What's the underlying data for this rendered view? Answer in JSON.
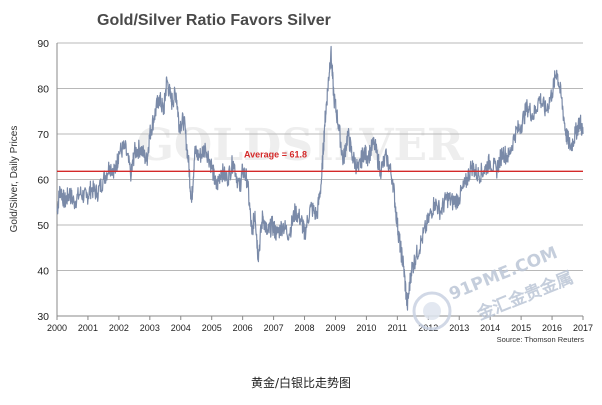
{
  "chart_data": {
    "type": "line",
    "title": "Gold/Silver Ratio Favors Silver",
    "ylabel": "Gold/Silver, Daily Prices",
    "xlabel": "",
    "ylim": [
      30,
      90
    ],
    "yticks": [
      30,
      40,
      50,
      60,
      70,
      80,
      90
    ],
    "xlim": [
      2000,
      2017
    ],
    "xticks": [
      "2000",
      "2001",
      "2002",
      "2003",
      "2004",
      "2005",
      "2006",
      "2007",
      "2008",
      "2009",
      "2010",
      "2011",
      "2012",
      "2013",
      "2014",
      "2015",
      "2016",
      "2017"
    ],
    "grid": "horizontal",
    "series": [
      {
        "name": "",
        "color": "#7a8aa8",
        "points": [
          [
            2000.0,
            53
          ],
          [
            2000.1,
            58
          ],
          [
            2000.25,
            55
          ],
          [
            2000.4,
            57
          ],
          [
            2000.55,
            55
          ],
          [
            2000.75,
            57
          ],
          [
            2000.95,
            56
          ],
          [
            2001.1,
            58
          ],
          [
            2001.3,
            57
          ],
          [
            2001.5,
            60
          ],
          [
            2001.7,
            63
          ],
          [
            2001.9,
            62
          ],
          [
            2002.0,
            66
          ],
          [
            2002.2,
            67
          ],
          [
            2002.4,
            61
          ],
          [
            2002.5,
            66
          ],
          [
            2002.7,
            67
          ],
          [
            2002.9,
            64
          ],
          [
            2003.0,
            70
          ],
          [
            2003.15,
            74
          ],
          [
            2003.3,
            78
          ],
          [
            2003.45,
            75
          ],
          [
            2003.55,
            82
          ],
          [
            2003.7,
            77
          ],
          [
            2003.85,
            79
          ],
          [
            2003.95,
            72
          ],
          [
            2004.1,
            73
          ],
          [
            2004.25,
            64
          ],
          [
            2004.35,
            55
          ],
          [
            2004.45,
            66
          ],
          [
            2004.6,
            65
          ],
          [
            2004.8,
            67
          ],
          [
            2005.0,
            63
          ],
          [
            2005.15,
            58
          ],
          [
            2005.3,
            62
          ],
          [
            2005.5,
            60
          ],
          [
            2005.7,
            64
          ],
          [
            2005.9,
            58
          ],
          [
            2006.0,
            62
          ],
          [
            2006.15,
            60
          ],
          [
            2006.3,
            48
          ],
          [
            2006.4,
            53
          ],
          [
            2006.5,
            43
          ],
          [
            2006.65,
            52
          ],
          [
            2006.8,
            48
          ],
          [
            2006.95,
            50
          ],
          [
            2007.1,
            48
          ],
          [
            2007.3,
            50
          ],
          [
            2007.5,
            48
          ],
          [
            2007.7,
            53
          ],
          [
            2007.9,
            51
          ],
          [
            2008.0,
            48
          ],
          [
            2008.2,
            54
          ],
          [
            2008.4,
            52
          ],
          [
            2008.55,
            60
          ],
          [
            2008.65,
            72
          ],
          [
            2008.75,
            80
          ],
          [
            2008.85,
            88
          ],
          [
            2008.95,
            78
          ],
          [
            2009.1,
            72
          ],
          [
            2009.25,
            64
          ],
          [
            2009.4,
            70
          ],
          [
            2009.55,
            65
          ],
          [
            2009.75,
            62
          ],
          [
            2009.9,
            66
          ],
          [
            2010.05,
            65
          ],
          [
            2010.25,
            68
          ],
          [
            2010.45,
            62
          ],
          [
            2010.65,
            65
          ],
          [
            2010.85,
            60
          ],
          [
            2011.0,
            50
          ],
          [
            2011.1,
            45
          ],
          [
            2011.2,
            41
          ],
          [
            2011.32,
            32
          ],
          [
            2011.45,
            40
          ],
          [
            2011.6,
            43
          ],
          [
            2011.8,
            47
          ],
          [
            2012.0,
            51
          ],
          [
            2012.2,
            55
          ],
          [
            2012.4,
            53
          ],
          [
            2012.6,
            56
          ],
          [
            2012.8,
            55
          ],
          [
            2013.0,
            56
          ],
          [
            2013.2,
            59
          ],
          [
            2013.4,
            63
          ],
          [
            2013.6,
            61
          ],
          [
            2013.8,
            62
          ],
          [
            2014.0,
            64
          ],
          [
            2014.2,
            62
          ],
          [
            2014.4,
            66
          ],
          [
            2014.6,
            65
          ],
          [
            2014.8,
            70
          ],
          [
            2015.0,
            72
          ],
          [
            2015.2,
            76
          ],
          [
            2015.4,
            74
          ],
          [
            2015.6,
            78
          ],
          [
            2015.8,
            75
          ],
          [
            2016.0,
            79
          ],
          [
            2016.15,
            84
          ],
          [
            2016.3,
            78
          ],
          [
            2016.45,
            70
          ],
          [
            2016.6,
            67
          ],
          [
            2016.75,
            70
          ],
          [
            2016.9,
            73
          ],
          [
            2017.0,
            70
          ]
        ]
      }
    ],
    "reference_line": {
      "value": 61.8,
      "label": "Average = 61.8",
      "color": "#d42a2a"
    },
    "source": "Source: Thomson Reuters",
    "legend": "none"
  },
  "caption": "黄金/白银比走势图",
  "watermark": {
    "background_text": "GOLDSILVER",
    "site_text": "91PME.COM",
    "site_subtext": "金汇金贵金属",
    "accent_color": "#c9d2e2"
  }
}
